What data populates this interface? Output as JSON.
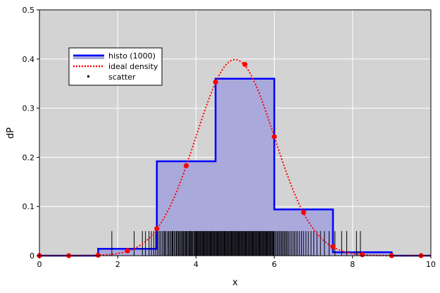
{
  "chart_data": {
    "type": "histogram",
    "xlabel": "x",
    "ylabel": "dP",
    "xlim": [
      0,
      10
    ],
    "ylim": [
      0,
      0.5
    ],
    "x_ticks": [
      0,
      2,
      4,
      6,
      8,
      10
    ],
    "y_ticks": [
      0,
      0.1,
      0.2,
      0.3,
      0.4,
      0.5
    ],
    "x_tick_labels": [
      "0",
      "2",
      "4",
      "6",
      "8",
      "10"
    ],
    "y_tick_labels": [
      "0",
      "0.1",
      "0.2",
      "0.3",
      "0.4",
      "0.5"
    ],
    "grid": true,
    "legend_position": "top-left",
    "colors": {
      "plot_background": "#d3d3d3",
      "histogram_line": "#0000ff",
      "histogram_fill": "#a9a9db",
      "density": "#ff0000",
      "scatter": "#000000"
    },
    "legend": [
      {
        "label": "histo (1000)",
        "kind": "histogram"
      },
      {
        "label": "ideal density",
        "kind": "dotted-line"
      },
      {
        "label": "scatter",
        "kind": "marker"
      }
    ],
    "histogram": {
      "bin_edges": [
        0,
        1.5,
        3,
        4.5,
        6,
        7.5,
        9,
        10
      ],
      "values": [
        0,
        0.014,
        0.192,
        0.36,
        0.094,
        0.007,
        0
      ]
    },
    "density_points": {
      "x": [
        0,
        0.75,
        1.5,
        2.25,
        3,
        3.75,
        4.5,
        5.25,
        6,
        6.75,
        7.5,
        8.25,
        9,
        9.75
      ],
      "y": [
        0,
        0,
        0.001,
        0.01,
        0.055,
        0.183,
        0.353,
        0.389,
        0.242,
        0.088,
        0.018,
        0.002,
        0,
        0
      ]
    },
    "density_curve": {
      "mean": 5.0,
      "sd": 1.0,
      "peak": 0.399
    },
    "scatter": {
      "marker_height": 0.05,
      "x": [
        1.85,
        2.42,
        2.63,
        2.71,
        2.8,
        2.86,
        2.92,
        2.97,
        3.02,
        3.06,
        3.1,
        3.14,
        3.18,
        3.2,
        3.23,
        3.27,
        3.3,
        3.33,
        3.36,
        3.39,
        3.41,
        3.44,
        3.47,
        3.5,
        3.52,
        3.55,
        3.57,
        3.6,
        3.62,
        3.65,
        3.67,
        3.69,
        3.72,
        3.74,
        3.76,
        3.78,
        3.81,
        3.83,
        3.85,
        3.87,
        3.89,
        3.91,
        3.94,
        3.96,
        3.98,
        4.0,
        4.02,
        4.04,
        4.06,
        4.08,
        4.1,
        4.12,
        4.14,
        4.16,
        4.18,
        4.2,
        4.22,
        4.24,
        4.26,
        4.28,
        4.3,
        4.32,
        4.34,
        4.36,
        4.38,
        4.4,
        4.42,
        4.44,
        4.46,
        4.48,
        4.5,
        4.52,
        4.54,
        4.56,
        4.58,
        4.6,
        4.62,
        4.64,
        4.66,
        4.68,
        4.7,
        4.72,
        4.74,
        4.76,
        4.78,
        4.8,
        4.82,
        4.84,
        4.86,
        4.88,
        4.9,
        4.92,
        4.94,
        4.96,
        4.98,
        5.0,
        5.02,
        5.04,
        5.06,
        5.08,
        5.1,
        5.12,
        5.14,
        5.16,
        5.18,
        5.2,
        5.22,
        5.24,
        5.26,
        5.28,
        5.3,
        5.32,
        5.34,
        5.36,
        5.38,
        5.4,
        5.42,
        5.44,
        5.46,
        5.48,
        5.5,
        5.52,
        5.54,
        5.56,
        5.58,
        5.6,
        5.62,
        5.64,
        5.66,
        5.68,
        5.7,
        5.72,
        5.74,
        5.76,
        5.78,
        5.8,
        5.82,
        5.84,
        5.86,
        5.88,
        5.9,
        5.92,
        5.94,
        5.96,
        5.98,
        6.0,
        6.03,
        6.06,
        6.09,
        6.12,
        6.15,
        6.18,
        6.21,
        6.24,
        6.27,
        6.3,
        6.33,
        6.36,
        6.4,
        6.44,
        6.48,
        6.52,
        6.56,
        6.6,
        6.65,
        6.7,
        6.75,
        6.81,
        6.87,
        6.94,
        7.01,
        7.09,
        7.18,
        7.28,
        7.4,
        7.55,
        7.72,
        7.85,
        8.1,
        8.2
      ]
    }
  }
}
